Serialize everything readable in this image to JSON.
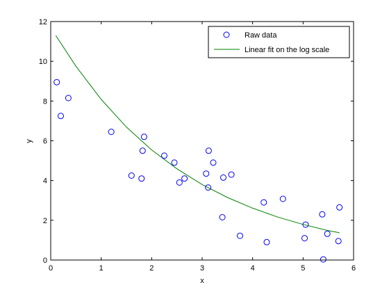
{
  "chart_data": {
    "type": "scatter",
    "title": "",
    "xlabel": "x",
    "ylabel": "y",
    "xlim": [
      0,
      6
    ],
    "ylim": [
      0,
      12
    ],
    "xticks": [
      0,
      1,
      2,
      3,
      4,
      5,
      6
    ],
    "yticks": [
      0,
      2,
      4,
      6,
      8,
      10,
      12
    ],
    "xtick_labels": [
      "0",
      "1",
      "2",
      "3",
      "4",
      "5",
      "6"
    ],
    "ytick_labels": [
      "0",
      "2",
      "4",
      "6",
      "8",
      "10",
      "12"
    ],
    "grid": false,
    "legend_position": "top-right",
    "series": [
      {
        "name": "Raw data",
        "kind": "scatter",
        "marker": "open-circle",
        "color": "#0000ff",
        "points": [
          {
            "x": 0.12,
            "y": 8.95
          },
          {
            "x": 0.2,
            "y": 7.25
          },
          {
            "x": 0.35,
            "y": 8.15
          },
          {
            "x": 1.2,
            "y": 6.45
          },
          {
            "x": 1.6,
            "y": 4.25
          },
          {
            "x": 1.8,
            "y": 4.1
          },
          {
            "x": 1.82,
            "y": 5.5
          },
          {
            "x": 1.85,
            "y": 6.2
          },
          {
            "x": 2.25,
            "y": 5.25
          },
          {
            "x": 2.45,
            "y": 4.9
          },
          {
            "x": 2.55,
            "y": 3.9
          },
          {
            "x": 2.65,
            "y": 4.1
          },
          {
            "x": 3.08,
            "y": 4.35
          },
          {
            "x": 3.12,
            "y": 3.65
          },
          {
            "x": 3.13,
            "y": 5.5
          },
          {
            "x": 3.22,
            "y": 4.9
          },
          {
            "x": 3.4,
            "y": 2.15
          },
          {
            "x": 3.42,
            "y": 4.15
          },
          {
            "x": 3.58,
            "y": 4.3
          },
          {
            "x": 3.75,
            "y": 1.22
          },
          {
            "x": 4.22,
            "y": 2.9
          },
          {
            "x": 4.28,
            "y": 0.9
          },
          {
            "x": 4.6,
            "y": 3.08
          },
          {
            "x": 5.03,
            "y": 1.1
          },
          {
            "x": 5.05,
            "y": 1.78
          },
          {
            "x": 5.38,
            "y": 2.3
          },
          {
            "x": 5.4,
            "y": 0.03
          },
          {
            "x": 5.48,
            "y": 1.32
          },
          {
            "x": 5.7,
            "y": 0.95
          },
          {
            "x": 5.72,
            "y": 2.65
          }
        ]
      },
      {
        "name": "Linear fit on the log scale",
        "kind": "line",
        "color": "#008000",
        "points": [
          {
            "x": 0.1,
            "y": 11.3
          },
          {
            "x": 0.5,
            "y": 9.75
          },
          {
            "x": 1.0,
            "y": 8.08
          },
          {
            "x": 1.5,
            "y": 6.69
          },
          {
            "x": 2.0,
            "y": 5.54
          },
          {
            "x": 2.5,
            "y": 4.59
          },
          {
            "x": 3.0,
            "y": 3.8
          },
          {
            "x": 3.5,
            "y": 3.15
          },
          {
            "x": 4.0,
            "y": 2.61
          },
          {
            "x": 4.5,
            "y": 2.16
          },
          {
            "x": 5.0,
            "y": 1.79
          },
          {
            "x": 5.5,
            "y": 1.48
          },
          {
            "x": 5.72,
            "y": 1.37
          }
        ]
      }
    ]
  }
}
